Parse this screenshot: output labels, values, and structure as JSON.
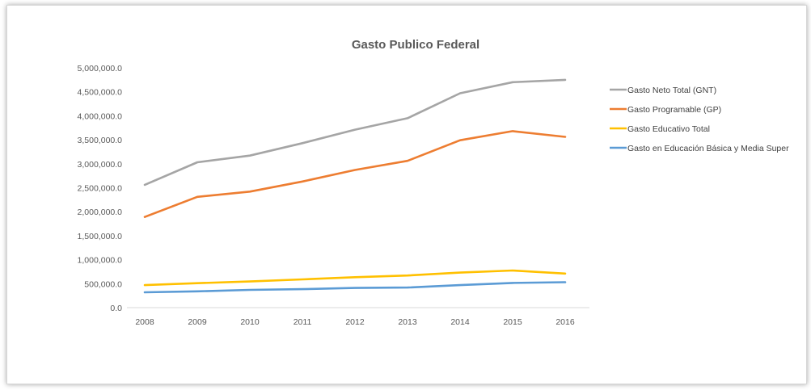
{
  "chart_data": {
    "type": "line",
    "title": "Gasto Publico Federal",
    "xlabel": "",
    "ylabel": "",
    "categories": [
      "2008",
      "2009",
      "2010",
      "2011",
      "2012",
      "2013",
      "2014",
      "2015",
      "2016"
    ],
    "ylim": [
      0,
      5000000
    ],
    "y_ticks": [
      0,
      500000,
      1000000,
      1500000,
      2000000,
      2500000,
      3000000,
      3500000,
      4000000,
      4500000,
      5000000
    ],
    "y_tick_labels": [
      "0.0",
      "500,000.0",
      "1,000,000.0",
      "1,500,000.0",
      "2,000,000.0",
      "2,500,000.0",
      "3,000,000.0",
      "3,500,000.0",
      "4,000,000.0",
      "4,500,000.0",
      "5,000,000.0"
    ],
    "grid": false,
    "legend_position": "right",
    "series": [
      {
        "name": "Gasto Neto Total (GNT)",
        "color": "#a5a5a5",
        "values": [
          2560000,
          3030000,
          3170000,
          3430000,
          3710000,
          3950000,
          4470000,
          4700000,
          4750000
        ]
      },
      {
        "name": "Gasto Programable (GP)",
        "color": "#ed7d31",
        "values": [
          1890000,
          2310000,
          2420000,
          2630000,
          2870000,
          3060000,
          3490000,
          3680000,
          3560000
        ]
      },
      {
        "name": "Gasto Educativo Total",
        "color": "#ffc000",
        "values": [
          470000,
          510000,
          545000,
          590000,
          635000,
          670000,
          730000,
          775000,
          710000
        ]
      },
      {
        "name": "Gasto en Educación Básica y Media Super",
        "color": "#5b9bd5",
        "values": [
          320000,
          340000,
          370000,
          385000,
          410000,
          420000,
          470000,
          515000,
          530000
        ]
      }
    ]
  }
}
